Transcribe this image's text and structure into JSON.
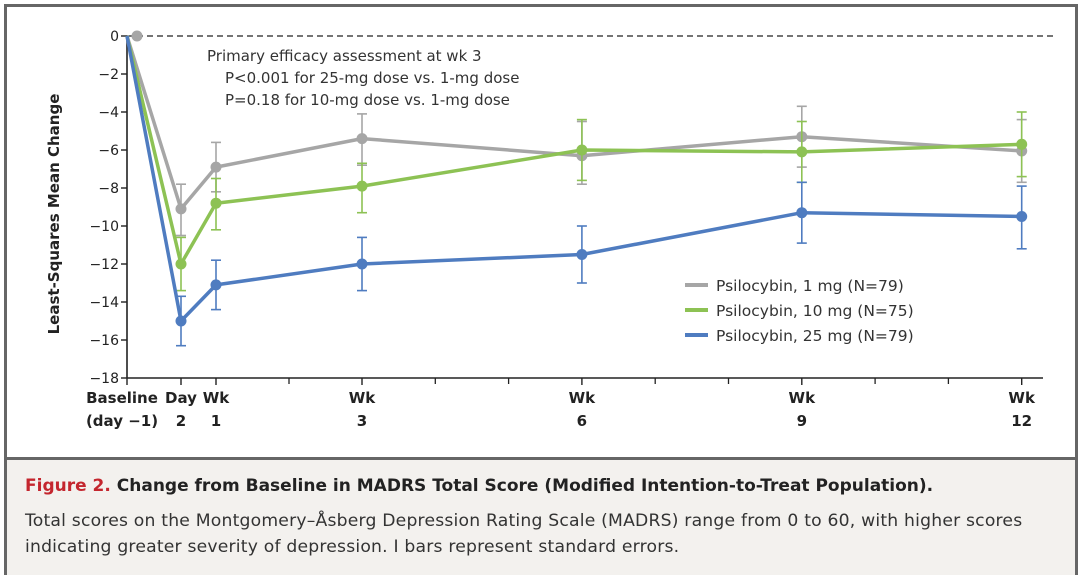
{
  "chart_data": {
    "type": "line",
    "title": "Figure 2. Change from Baseline in MADRS Total Score (Modified Intention-to-Treat Population).",
    "ylabel": "Least-Squares Mean Change",
    "xlabel": "",
    "ylim": [
      -18,
      0
    ],
    "yticks": [
      0,
      -2,
      -4,
      -6,
      -8,
      -10,
      -12,
      -14,
      -16,
      -18
    ],
    "ytick_labels": [
      "0",
      "−2",
      "−4",
      "−6",
      "−8",
      "−10",
      "−12",
      "−14",
      "−16",
      "−18"
    ],
    "x_weeks": [
      -0.1429,
      0.2857,
      1,
      3,
      6,
      9,
      12
    ],
    "x_labels": [
      {
        "line1": "Baseline",
        "line2": "(day −1)"
      },
      {
        "line1": "Day",
        "line2": "2"
      },
      {
        "line1": "Wk",
        "line2": "1"
      },
      {
        "line1": "Wk",
        "line2": "3"
      },
      {
        "line1": "Wk",
        "line2": "6"
      },
      {
        "line1": "Wk",
        "line2": "9"
      },
      {
        "line1": "Wk",
        "line2": "12"
      }
    ],
    "minor_tick_weeks": [
      2,
      4,
      5,
      7,
      8,
      10,
      11
    ],
    "reference_line": 0,
    "error_bars": "standard errors",
    "series": [
      {
        "name": "Psilocybin, 1 mg (N=79)",
        "color": "#a6a6a6",
        "values": [
          0,
          -9.1,
          -6.9,
          -5.4,
          -6.3,
          -5.3,
          -6.05
        ],
        "err_hi": [
          null,
          -7.8,
          -5.6,
          -4.1,
          -4.5,
          -3.7,
          -4.4
        ],
        "err_lo": [
          null,
          -10.5,
          -8.2,
          -6.8,
          -7.8,
          -6.9,
          -7.7
        ]
      },
      {
        "name": "Psilocybin, 10 mg (N=75)",
        "color": "#8dc254",
        "values": [
          0,
          -12.0,
          -8.8,
          -7.9,
          -6.0,
          -6.1,
          -5.7
        ],
        "err_hi": [
          null,
          -10.6,
          -7.5,
          -6.7,
          -4.4,
          -4.5,
          -4.0
        ],
        "err_lo": [
          null,
          -13.4,
          -10.2,
          -9.3,
          -7.6,
          -7.7,
          -7.4
        ]
      },
      {
        "name": "Psilocybin, 25 mg (N=79)",
        "color": "#4f7cc0",
        "values": [
          0,
          -15.0,
          -13.1,
          -12.0,
          -11.5,
          -9.3,
          -9.5
        ],
        "err_hi": [
          null,
          -13.7,
          -11.8,
          -10.6,
          -10.0,
          -7.7,
          -7.9
        ],
        "err_lo": [
          null,
          -16.3,
          -14.4,
          -13.4,
          -13.0,
          -10.9,
          -11.2
        ]
      }
    ],
    "annotation": [
      "Primary efficacy assessment at wk 3",
      "P<0.001 for 25-mg dose vs. 1-mg dose",
      "P=0.18 for 10-mg dose vs. 1-mg dose"
    ],
    "legend_placement": "lower-right",
    "grid": false
  },
  "caption": {
    "figure_label": "Figure 2.",
    "title": " Change from Baseline in MADRS Total Score (Modified Intention-to-Treat Population).",
    "body": "Total scores on the Montgomery–Åsberg Depression Rating Scale (MADRS) range from 0 to 60, with higher scores indicating greater severity of depression. I bars represent standard errors."
  }
}
